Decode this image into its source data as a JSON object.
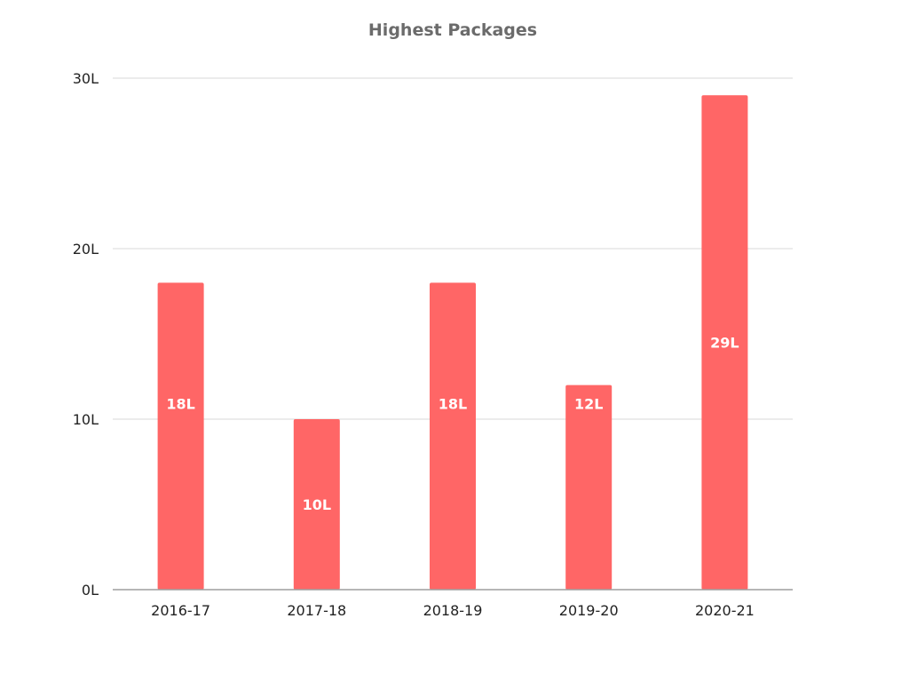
{
  "chart_data": {
    "type": "bar",
    "title": "Highest Packages",
    "categories": [
      "2016-17",
      "2017-18",
      "2018-19",
      "2019-20",
      "2020-21"
    ],
    "values": [
      18,
      10,
      18,
      12,
      29
    ],
    "data_labels": [
      "18L",
      "10L",
      "18L",
      "12L",
      "29L"
    ],
    "y_ticks": [
      0,
      10,
      20,
      30
    ],
    "y_tick_labels": [
      "0L",
      "10L",
      "20L",
      "30L"
    ],
    "ylim": [
      0,
      30
    ],
    "grid": true,
    "legend": "none",
    "bar_color": "#ff6666",
    "xlabel": "",
    "ylabel": ""
  }
}
